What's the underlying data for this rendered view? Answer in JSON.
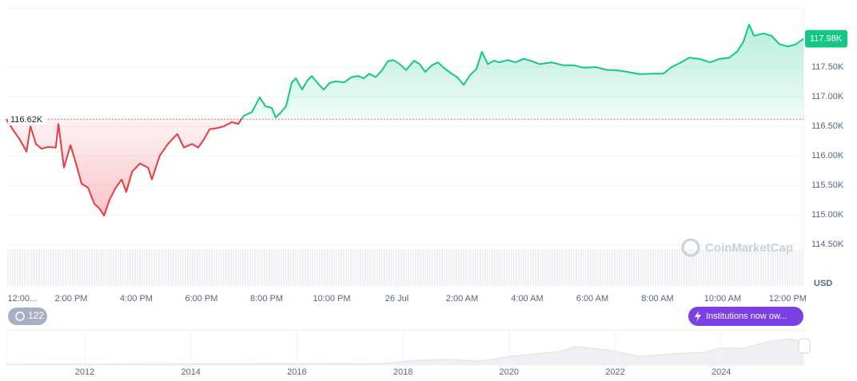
{
  "chart_data": {
    "type": "line",
    "x": [
      12.01,
      12.18,
      12.43,
      12.63,
      12.75,
      12.92,
      13.09,
      13.29,
      13.53,
      13.61,
      13.78,
      13.98,
      14.15,
      14.32,
      14.52,
      14.71,
      14.88,
      15.01,
      15.18,
      15.37,
      15.55,
      15.69,
      15.87,
      16.11,
      16.36,
      16.48,
      16.72,
      16.97,
      17.26,
      17.46,
      17.71,
      17.9,
      18.07,
      18.25,
      18.49,
      18.69,
      18.93,
      19.13,
      19.3,
      19.55,
      19.79,
      19.96,
      20.16,
      20.28,
      20.45,
      20.6,
      20.77,
      20.9,
      21.09,
      21.26,
      21.39,
      21.58,
      21.75,
      21.93,
      22.12,
      22.37,
      22.61,
      22.81,
      22.98,
      23.15,
      23.35,
      23.55,
      23.72,
      23.89,
      24.09,
      24.28,
      24.53,
      24.7,
      24.87,
      25.07,
      25.26,
      25.44,
      25.68,
      25.85,
      26.05,
      26.25,
      26.44,
      26.61,
      26.79,
      26.98,
      27.15,
      27.4,
      27.64,
      27.89,
      28.14,
      28.38,
      28.75,
      29.12,
      29.44,
      29.73,
      30.1,
      30.47,
      30.71,
      31.08,
      31.45,
      31.82,
      32.18,
      32.43,
      32.72,
      32.97,
      33.29,
      33.61,
      33.9,
      34.2,
      34.44,
      34.64,
      34.81,
      34.96,
      35.25,
      35.5,
      35.74,
      35.99,
      36.23,
      36.48
    ],
    "values": [
      116620,
      116470,
      116270,
      116070,
      116500,
      116200,
      116120,
      116150,
      116140,
      116540,
      115800,
      116180,
      115870,
      115530,
      115460,
      115190,
      115100,
      114990,
      115260,
      115460,
      115600,
      115390,
      115730,
      115870,
      115800,
      115600,
      116000,
      116200,
      116370,
      116140,
      116200,
      116140,
      116270,
      116450,
      116470,
      116500,
      116570,
      116540,
      116680,
      116740,
      116990,
      116840,
      116810,
      116650,
      116740,
      116840,
      117240,
      117310,
      117120,
      117280,
      117350,
      117220,
      117120,
      117230,
      117260,
      117240,
      117330,
      117350,
      117310,
      117390,
      117330,
      117450,
      117600,
      117620,
      117550,
      117450,
      117610,
      117550,
      117420,
      117530,
      117580,
      117490,
      117390,
      117330,
      117200,
      117370,
      117470,
      117760,
      117550,
      117610,
      117580,
      117620,
      117580,
      117640,
      117600,
      117550,
      117580,
      117530,
      117530,
      117490,
      117500,
      117450,
      117450,
      117420,
      117380,
      117390,
      117390,
      117500,
      117580,
      117660,
      117640,
      117580,
      117640,
      117660,
      117760,
      117930,
      118220,
      118030,
      118070,
      118030,
      117890,
      117850,
      117880,
      117980
    ],
    "color_up": "#16c784",
    "color_down": "#ea3943",
    "xlim": [
      12,
      36.48
    ],
    "xticks": [
      {
        "value": 12.5,
        "label": "12:00..."
      },
      {
        "value": 14,
        "label": "2:00 PM"
      },
      {
        "value": 16,
        "label": "4:00 PM"
      },
      {
        "value": 18,
        "label": "6:00 PM"
      },
      {
        "value": 20,
        "label": "8:00 PM"
      },
      {
        "value": 22,
        "label": "10:00 PM"
      },
      {
        "value": 24,
        "label": "26 Jul"
      },
      {
        "value": 26,
        "label": "2:00 AM"
      },
      {
        "value": 28,
        "label": "4:00 AM"
      },
      {
        "value": 30,
        "label": "6:00 AM"
      },
      {
        "value": 32,
        "label": "8:00 AM"
      },
      {
        "value": 34,
        "label": "10:00 AM"
      },
      {
        "value": 36,
        "label": "12:00 PM"
      }
    ],
    "ylim": [
      113800,
      118500
    ],
    "yticks": [
      {
        "value": 114500,
        "label": "114.50K"
      },
      {
        "value": 115000,
        "label": "115.00K"
      },
      {
        "value": 115500,
        "label": "115.50K"
      },
      {
        "value": 116000,
        "label": "116.00K"
      },
      {
        "value": 116500,
        "label": "116.50K"
      },
      {
        "value": 117000,
        "label": "117.00K"
      },
      {
        "value": 117500,
        "label": "117.50K"
      }
    ],
    "grid": true,
    "baseline": {
      "value": 116620,
      "label": "116.62K"
    },
    "last_price": {
      "value": 117980,
      "label": "117.98K"
    },
    "y_unit": "USD"
  },
  "watermark": "CoinMarketCap",
  "badge": "122",
  "news_pill": "Institutions now ow...",
  "navigator": {
    "labels": [
      "2012",
      "2014",
      "2016",
      "2018",
      "2020",
      "2022",
      "2024"
    ]
  }
}
